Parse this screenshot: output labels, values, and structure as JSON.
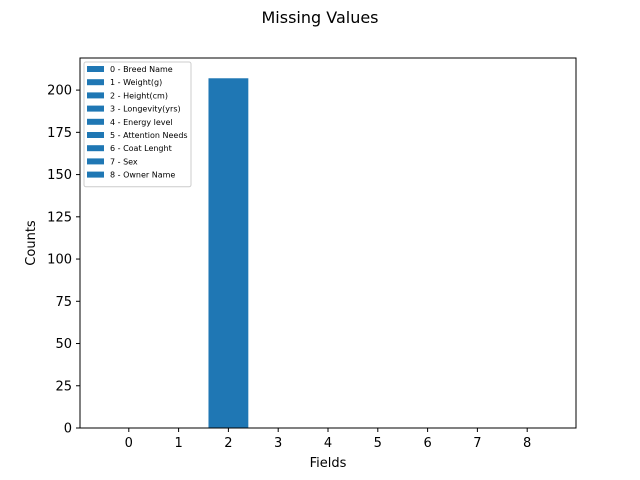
{
  "chart_data": {
    "type": "bar",
    "title": "Missing Values",
    "xlabel": "Fields",
    "ylabel": "Counts",
    "categories": [
      "0",
      "1",
      "2",
      "3",
      "4",
      "5",
      "6",
      "7",
      "8"
    ],
    "values": [
      0,
      0,
      207,
      0,
      0,
      0,
      0,
      0,
      0
    ],
    "ylim": [
      0,
      219
    ],
    "xlim": [
      -0.98,
      8.98
    ],
    "yticks": [
      0,
      25,
      50,
      75,
      100,
      125,
      150,
      175,
      200
    ],
    "bar_color": "#1f77b4",
    "grid": false,
    "legend_placement": "top-left",
    "legend": [
      "0 - Breed Name",
      "1 - Weight(g)",
      "2 - Height(cm)",
      "3 - Longevity(yrs)",
      "4 - Energy level",
      "5 - Attention Needs",
      "6 - Coat Lenght",
      "7 - Sex",
      "8 - Owner Name"
    ]
  }
}
